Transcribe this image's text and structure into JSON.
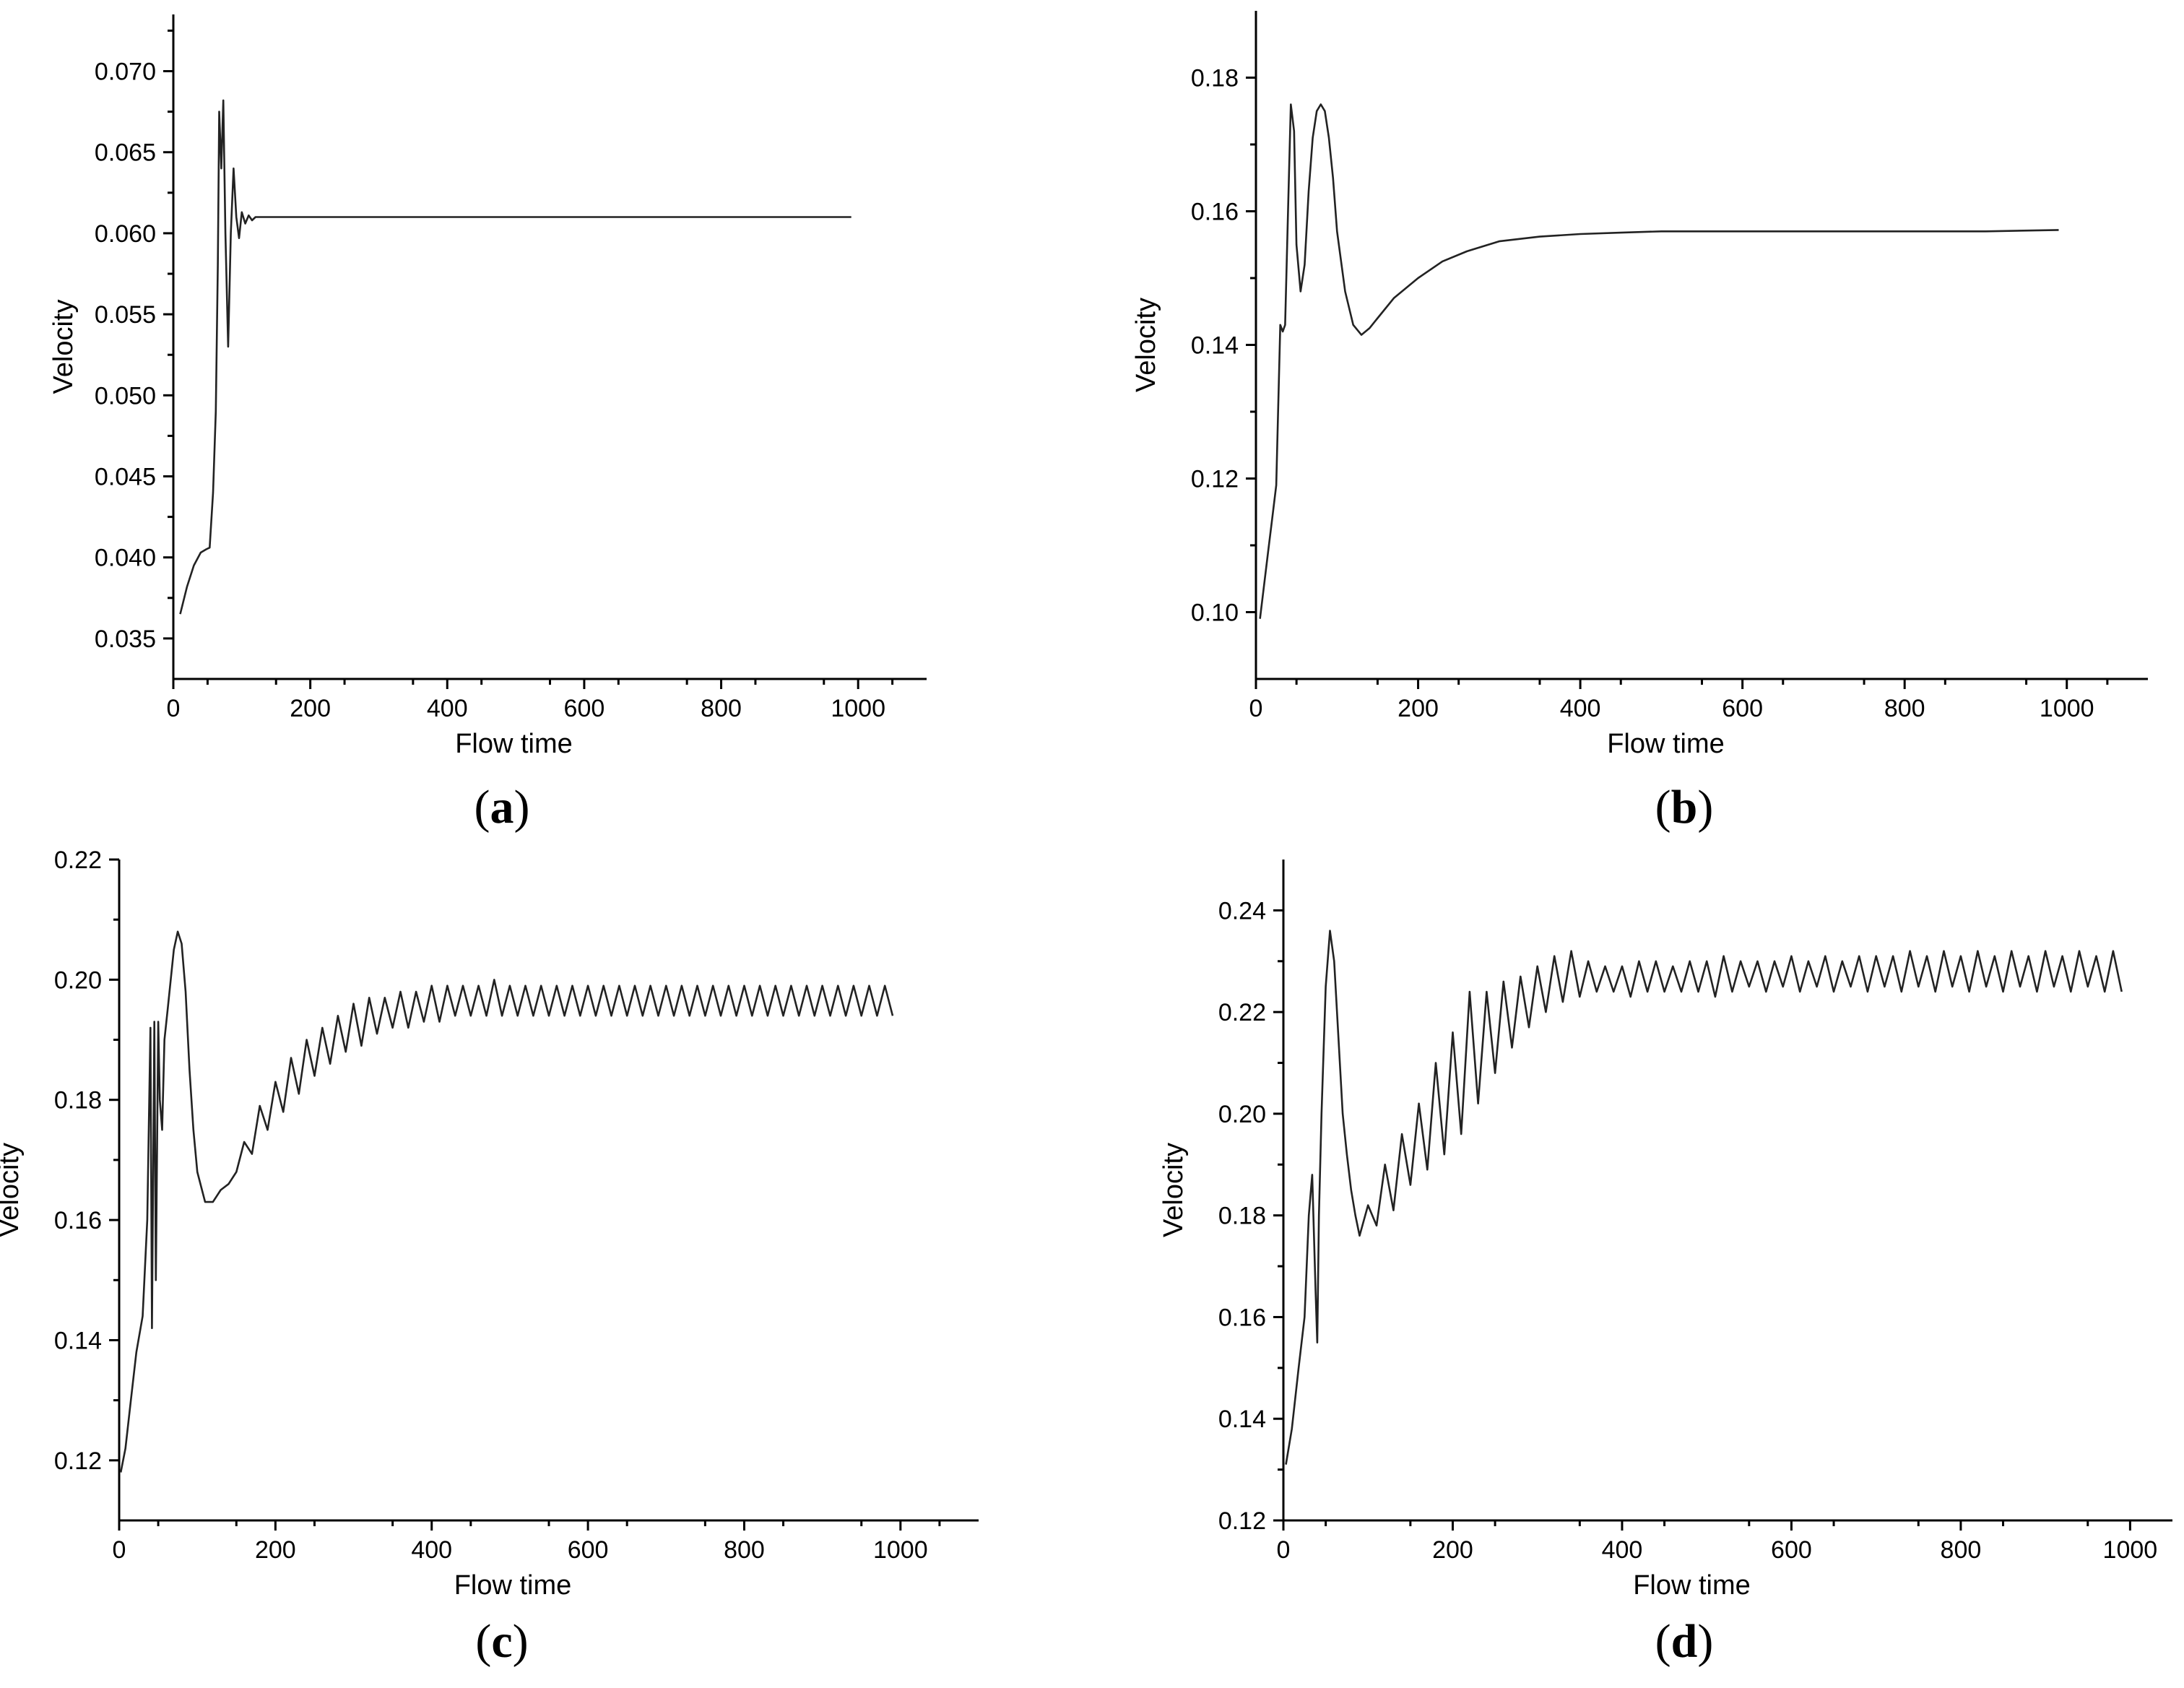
{
  "chart_data": [
    {
      "id": "a",
      "type": "line",
      "caption_letter": "a",
      "xlabel": "Flow time",
      "ylabel": "Velocity",
      "xlim": [
        0,
        1100
      ],
      "ylim": [
        0.0325,
        0.0735
      ],
      "xticks": [
        0,
        200,
        400,
        600,
        800,
        1000
      ],
      "xtick_labels": [
        "0",
        "200",
        "400",
        "600",
        "800",
        "1000"
      ],
      "yticks": [
        0.035,
        0.04,
        0.045,
        0.05,
        0.055,
        0.06,
        0.065,
        0.07
      ],
      "ytick_labels": [
        "0.035",
        "0.040",
        "0.045",
        "0.050",
        "0.055",
        "0.060",
        "0.065",
        "0.070"
      ],
      "series": [
        {
          "x": [
            10,
            20,
            30,
            40,
            48,
            53,
            58,
            62,
            65,
            67,
            70,
            73,
            76,
            80,
            84,
            88,
            92,
            96,
            100,
            105,
            110,
            115,
            120,
            130,
            200,
            400,
            600,
            800,
            990
          ],
          "y": [
            0.0365,
            0.0382,
            0.0395,
            0.0403,
            0.0405,
            0.0406,
            0.044,
            0.049,
            0.058,
            0.0675,
            0.064,
            0.0682,
            0.06,
            0.053,
            0.06,
            0.064,
            0.061,
            0.0597,
            0.0613,
            0.0606,
            0.0611,
            0.0608,
            0.061,
            0.061,
            0.061,
            0.061,
            0.061,
            0.061,
            0.061
          ]
        }
      ]
    },
    {
      "id": "b",
      "type": "line",
      "caption_letter": "b",
      "xlabel": "Flow time",
      "ylabel": "Velocity",
      "xlim": [
        0,
        1100
      ],
      "ylim": [
        0.09,
        0.19
      ],
      "xticks": [
        0,
        200,
        400,
        600,
        800,
        1000
      ],
      "xtick_labels": [
        "0",
        "200",
        "400",
        "600",
        "800",
        "1000"
      ],
      "yticks": [
        0.1,
        0.12,
        0.14,
        0.16,
        0.18
      ],
      "ytick_labels": [
        "0.10",
        "0.12",
        "0.14",
        "0.16",
        "0.18"
      ],
      "series": [
        {
          "x": [
            5,
            10,
            15,
            20,
            25,
            30,
            33,
            36,
            40,
            43,
            47,
            50,
            55,
            60,
            65,
            70,
            75,
            80,
            85,
            90,
            95,
            100,
            110,
            120,
            130,
            140,
            150,
            170,
            200,
            230,
            260,
            300,
            350,
            400,
            450,
            500,
            600,
            700,
            800,
            900,
            990
          ],
          "y": [
            0.099,
            0.104,
            0.109,
            0.114,
            0.119,
            0.143,
            0.142,
            0.143,
            0.162,
            0.176,
            0.172,
            0.155,
            0.148,
            0.152,
            0.163,
            0.171,
            0.175,
            0.176,
            0.175,
            0.171,
            0.165,
            0.157,
            0.148,
            0.143,
            0.1415,
            0.1425,
            0.144,
            0.147,
            0.15,
            0.1525,
            0.154,
            0.1555,
            0.1562,
            0.1566,
            0.1568,
            0.157,
            0.157,
            0.157,
            0.157,
            0.157,
            0.1572
          ]
        }
      ]
    },
    {
      "id": "c",
      "type": "line",
      "caption_letter": "c",
      "xlabel": "Flow time",
      "ylabel": "Velocity",
      "xlim": [
        0,
        1100
      ],
      "ylim": [
        0.11,
        0.22
      ],
      "xticks": [
        0,
        200,
        400,
        600,
        800,
        1000
      ],
      "xtick_labels": [
        "0",
        "200",
        "400",
        "600",
        "800",
        "1000"
      ],
      "yticks": [
        0.12,
        0.14,
        0.16,
        0.18,
        0.2,
        0.22
      ],
      "ytick_labels": [
        "0.12",
        "0.14",
        "0.16",
        "0.18",
        "0.20",
        "0.22"
      ],
      "series": [
        {
          "x": [
            2,
            8,
            15,
            22,
            30,
            36,
            40,
            42,
            45,
            47,
            50,
            52,
            55,
            58,
            62,
            66,
            70,
            75,
            80,
            85,
            90,
            95,
            100,
            110,
            120,
            130,
            140,
            150,
            160,
            170,
            180,
            190,
            200,
            210,
            220,
            230,
            240,
            250,
            260,
            270,
            280,
            290,
            300,
            310,
            320,
            330,
            340,
            350,
            360,
            370,
            380,
            390,
            400,
            410,
            420,
            430,
            440,
            450,
            460,
            470,
            480,
            490,
            500,
            510,
            520,
            530,
            540,
            550,
            560,
            570,
            580,
            590,
            600,
            610,
            620,
            630,
            640,
            650,
            660,
            670,
            680,
            690,
            700,
            710,
            720,
            730,
            740,
            750,
            760,
            770,
            780,
            790,
            800,
            810,
            820,
            830,
            840,
            850,
            860,
            870,
            880,
            890,
            900,
            910,
            920,
            930,
            940,
            950,
            960,
            970,
            980,
            990
          ],
          "y": [
            0.118,
            0.122,
            0.13,
            0.138,
            0.144,
            0.16,
            0.192,
            0.142,
            0.193,
            0.15,
            0.193,
            0.18,
            0.175,
            0.19,
            0.195,
            0.2,
            0.205,
            0.208,
            0.206,
            0.198,
            0.185,
            0.175,
            0.168,
            0.163,
            0.163,
            0.165,
            0.166,
            0.168,
            0.173,
            0.171,
            0.179,
            0.175,
            0.183,
            0.178,
            0.187,
            0.181,
            0.19,
            0.184,
            0.192,
            0.186,
            0.194,
            0.188,
            0.196,
            0.189,
            0.197,
            0.191,
            0.197,
            0.192,
            0.198,
            0.192,
            0.198,
            0.193,
            0.199,
            0.193,
            0.199,
            0.194,
            0.199,
            0.194,
            0.199,
            0.194,
            0.2,
            0.194,
            0.199,
            0.194,
            0.199,
            0.194,
            0.199,
            0.194,
            0.199,
            0.194,
            0.199,
            0.194,
            0.199,
            0.194,
            0.199,
            0.194,
            0.199,
            0.194,
            0.199,
            0.194,
            0.199,
            0.194,
            0.199,
            0.194,
            0.199,
            0.194,
            0.199,
            0.194,
            0.199,
            0.194,
            0.199,
            0.194,
            0.199,
            0.194,
            0.199,
            0.194,
            0.199,
            0.194,
            0.199,
            0.194,
            0.199,
            0.194,
            0.199,
            0.194,
            0.199,
            0.194,
            0.199,
            0.194,
            0.199,
            0.194,
            0.199,
            0.194
          ]
        }
      ]
    },
    {
      "id": "d",
      "type": "line",
      "caption_letter": "d",
      "xlabel": "Flow time",
      "ylabel": "Velocity",
      "xlim": [
        0,
        1050
      ],
      "ylim": [
        0.12,
        0.25
      ],
      "xticks": [
        0,
        200,
        400,
        600,
        800,
        1000
      ],
      "xtick_labels": [
        "0",
        "200",
        "400",
        "600",
        "800",
        "1000"
      ],
      "yticks": [
        0.12,
        0.14,
        0.16,
        0.18,
        0.2,
        0.22,
        0.24
      ],
      "ytick_labels": [
        "0.12",
        "0.14",
        "0.16",
        "0.18",
        "0.20",
        "0.22",
        "0.24"
      ],
      "series": [
        {
          "x": [
            3,
            10,
            18,
            25,
            30,
            34,
            38,
            40,
            42,
            45,
            50,
            55,
            60,
            65,
            70,
            75,
            80,
            85,
            90,
            100,
            110,
            120,
            130,
            140,
            150,
            160,
            170,
            180,
            190,
            200,
            210,
            220,
            230,
            240,
            250,
            260,
            270,
            280,
            290,
            300,
            310,
            320,
            330,
            340,
            350,
            360,
            370,
            380,
            390,
            400,
            410,
            420,
            430,
            440,
            450,
            460,
            470,
            480,
            490,
            500,
            510,
            520,
            530,
            540,
            550,
            560,
            570,
            580,
            590,
            600,
            610,
            620,
            630,
            640,
            650,
            660,
            670,
            680,
            690,
            700,
            710,
            720,
            730,
            740,
            750,
            760,
            770,
            780,
            790,
            800,
            810,
            820,
            830,
            840,
            850,
            860,
            870,
            880,
            890,
            900,
            910,
            920,
            930,
            940,
            950,
            960,
            970,
            980,
            990
          ],
          "y": [
            0.131,
            0.138,
            0.15,
            0.16,
            0.18,
            0.188,
            0.165,
            0.155,
            0.18,
            0.2,
            0.225,
            0.236,
            0.23,
            0.215,
            0.2,
            0.192,
            0.185,
            0.18,
            0.176,
            0.182,
            0.178,
            0.19,
            0.181,
            0.196,
            0.186,
            0.202,
            0.189,
            0.21,
            0.192,
            0.216,
            0.196,
            0.224,
            0.202,
            0.224,
            0.208,
            0.226,
            0.213,
            0.227,
            0.217,
            0.229,
            0.22,
            0.231,
            0.222,
            0.232,
            0.223,
            0.23,
            0.224,
            0.229,
            0.224,
            0.229,
            0.223,
            0.23,
            0.224,
            0.23,
            0.224,
            0.229,
            0.224,
            0.23,
            0.224,
            0.23,
            0.223,
            0.231,
            0.224,
            0.23,
            0.225,
            0.23,
            0.224,
            0.23,
            0.225,
            0.231,
            0.224,
            0.23,
            0.225,
            0.231,
            0.224,
            0.23,
            0.225,
            0.231,
            0.224,
            0.231,
            0.225,
            0.231,
            0.224,
            0.232,
            0.225,
            0.231,
            0.224,
            0.232,
            0.225,
            0.231,
            0.224,
            0.232,
            0.225,
            0.231,
            0.224,
            0.232,
            0.225,
            0.231,
            0.224,
            0.232,
            0.225,
            0.231,
            0.224,
            0.232,
            0.225,
            0.231,
            0.224,
            0.232,
            0.224
          ]
        }
      ]
    }
  ]
}
